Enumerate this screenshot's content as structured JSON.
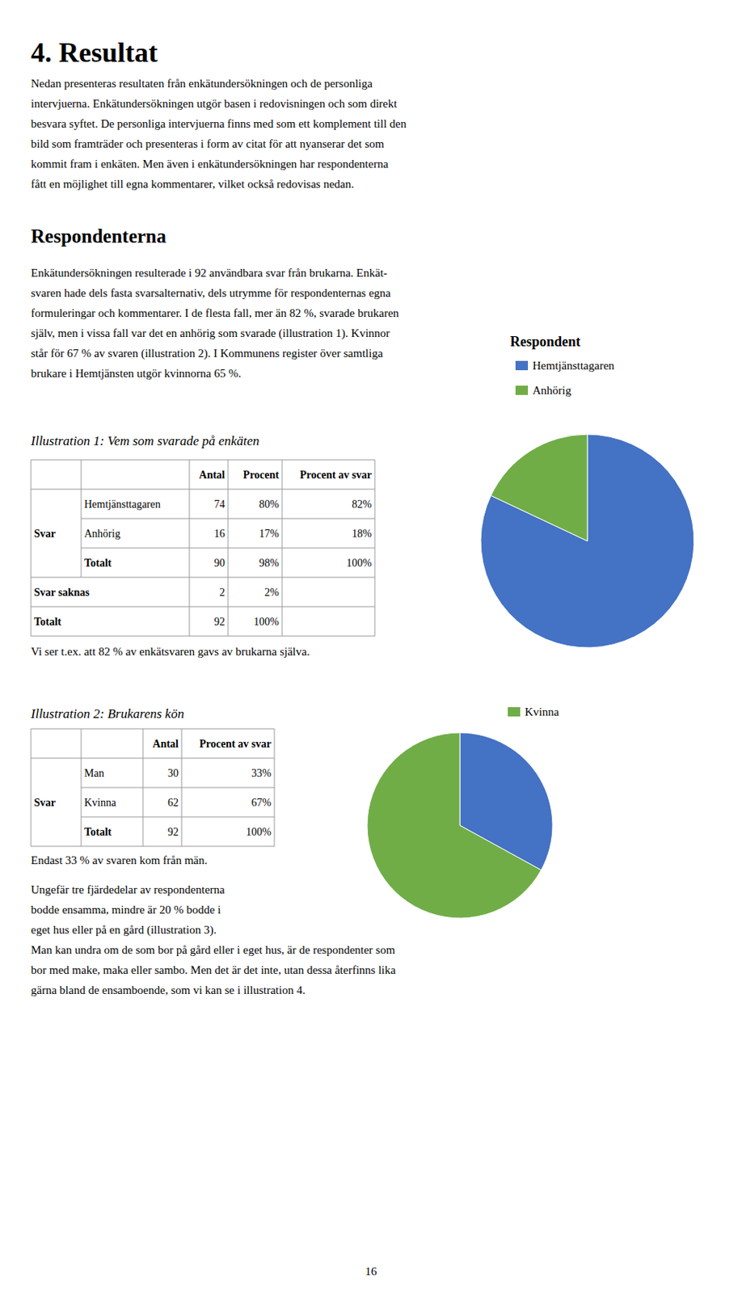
{
  "page": {
    "title": "4. Resultat",
    "intro": "Nedan presenteras resultaten från enkätundersökningen och de personliga\nintervjuerna. Enkätundersökningen utgör basen i redovisningen och som direkt\nbesvara syftet. De personliga intervjuerna finns med som ett komplement till den\nbild som framträder och presenteras i form av citat för att nyanserar det som\nkommit fram i enkäten. Men även i enkätundersökningen har respondenterna\nfått en möjlighet till egna kommentarer, vilket också redovisas nedan.",
    "section": "Respondenterna",
    "section_text": "Enkätundersökningen resulterade i 92 användbara svar från brukarna. Enkät-\nsvaren hade dels fasta svarsalternativ, dels utrymme för respondenternas egna\nformuleringar och kommentarer. I de flesta fall, mer än 82 %, svarade brukaren\nsjälv, men i vissa fall var det en anhörig som svarade (illustration 1). Kvinnor\nstår för 67 % av svaren (illustration 2). I Kommunens register över samtliga\nbrukare i Hemtjänsten utgör kvinnorna 65 %.",
    "closing": "Ungefär tre fjärdedelar av respondenterna\nbodde ensamma, mindre är 20 % bodde i\neget hus eller på en gård (illustration 3).\nMan kan undra om de som bor på gård eller i eget hus, är de respondenter som\nbor med make, maka eller sambo. Men det är det inte, utan dessa återfinns lika\ngärna bland de ensamboende, som vi kan se i illustration 4.",
    "page_number": "16"
  },
  "chart_data": [
    {
      "type": "pie",
      "title": "Illustration 1: Vem som svarade på enkäten",
      "categories": [
        "Hemtjänsttagaren",
        "Anhörig"
      ],
      "values": [
        82,
        18
      ],
      "colors": [
        "#4472c4",
        "#70ad47"
      ],
      "legend": "right",
      "annotations": [
        "Respondent"
      ],
      "table": {
        "columns": [
          null,
          null,
          "Antal",
          "Procent",
          "Procent av svar"
        ],
        "rows": [
          [
            "Svar",
            "Hemtjänsttagaren",
            "74",
            "80%",
            "82%"
          ],
          [
            null,
            "Anhörig",
            "16",
            "17%",
            "18%"
          ],
          [
            null,
            "Totalt",
            "90",
            "98%",
            "100%"
          ],
          [
            "Svar saknas",
            null,
            "2",
            "2%",
            null
          ],
          [
            "Totalt",
            null,
            "92",
            "100%",
            null
          ]
        ]
      },
      "note": "Vi ser t.ex. att 82 % av enkätsvaren gavs av brukarna själva."
    },
    {
      "type": "pie",
      "title": "Illustration 2: Brukarens kön",
      "categories": [
        null,
        "Kvinna"
      ],
      "values": [
        33,
        67
      ],
      "colors": [
        "#4472c4",
        "#70ad47"
      ],
      "legend": "right",
      "table": {
        "columns": [
          null,
          null,
          "Antal",
          "Procent av svar"
        ],
        "rows": [
          [
            "Svar",
            "Man",
            "30",
            "33%"
          ],
          [
            null,
            "Kvinna",
            "62",
            "67%"
          ],
          [
            null,
            "Totalt",
            "92",
            "100%"
          ]
        ]
      },
      "note": "Endast 33 % av svaren kom från män."
    }
  ]
}
